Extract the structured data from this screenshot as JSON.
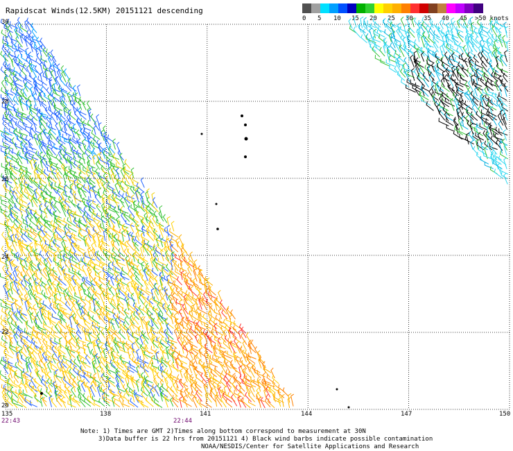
{
  "title": "Rapidscat Winds(12.5KM) 20151121 descending",
  "legend": {
    "labels": [
      "0",
      "5",
      "10",
      "15",
      "20",
      "25",
      "30",
      "35",
      "40",
      "45",
      ">50 knots"
    ],
    "colors": [
      "#505050",
      "#a0a0a0",
      "#00e0ff",
      "#00a0ff",
      "#0050ff",
      "#0000c0",
      "#00b000",
      "#30d030",
      "#ffff00",
      "#ffd000",
      "#ffb000",
      "#ff8000",
      "#ff3030",
      "#d00000",
      "#804020",
      "#c08040",
      "#ff00ff",
      "#c000ff",
      "#8000c0",
      "#400080"
    ]
  },
  "map": {
    "lon_ticks": [
      "135",
      "138",
      "141",
      "144",
      "147",
      "150"
    ],
    "lat_ticks": [
      "30",
      "28",
      "26",
      "24",
      "22",
      "20"
    ],
    "lon_range": [
      135,
      150
    ],
    "lat_range": [
      20,
      30
    ],
    "times": [
      "22:43",
      "22:44"
    ]
  },
  "notes": {
    "line1": "Note: 1) Times are GMT 2)Times along bottom correspond to measurement at 30N",
    "line2": "3)Data buffer is 22 hrs from 20151121 4) Black wind barbs indicate possible contamination",
    "line3": "NOAA/NESDIS/Center for Satellite Applications and Research"
  }
}
